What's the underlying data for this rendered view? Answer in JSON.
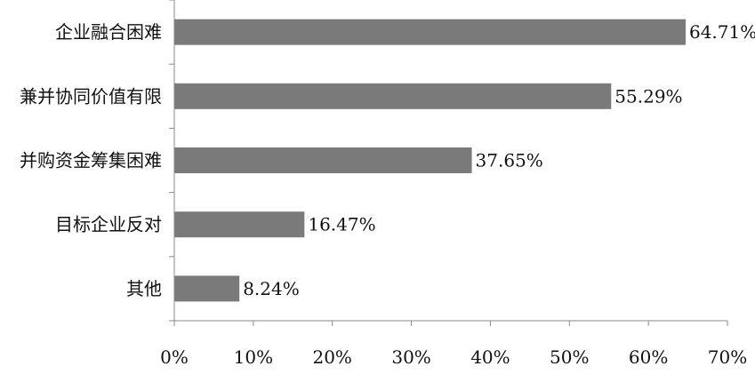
{
  "chart_data": {
    "type": "bar",
    "orientation": "horizontal",
    "title": "",
    "xlabel": "",
    "ylabel": "",
    "categories": [
      "企业融合困难",
      "兼并协同价值有限",
      "并购资金筹集困难",
      "目标企业反对",
      "其他"
    ],
    "values": [
      64.71,
      55.29,
      37.65,
      16.47,
      8.24
    ],
    "data_labels": [
      "64.71%",
      "55.29%",
      "37.65%",
      "16.47%",
      "8.24%"
    ],
    "x_ticks": [
      "0%",
      "10%",
      "20%",
      "30%",
      "40%",
      "50%",
      "60%",
      "70%"
    ],
    "xlim": [
      0,
      70
    ],
    "grid": false,
    "legend": "none",
    "bar_color": "#7a7a7a",
    "axis_color": "#8a8a8a"
  }
}
